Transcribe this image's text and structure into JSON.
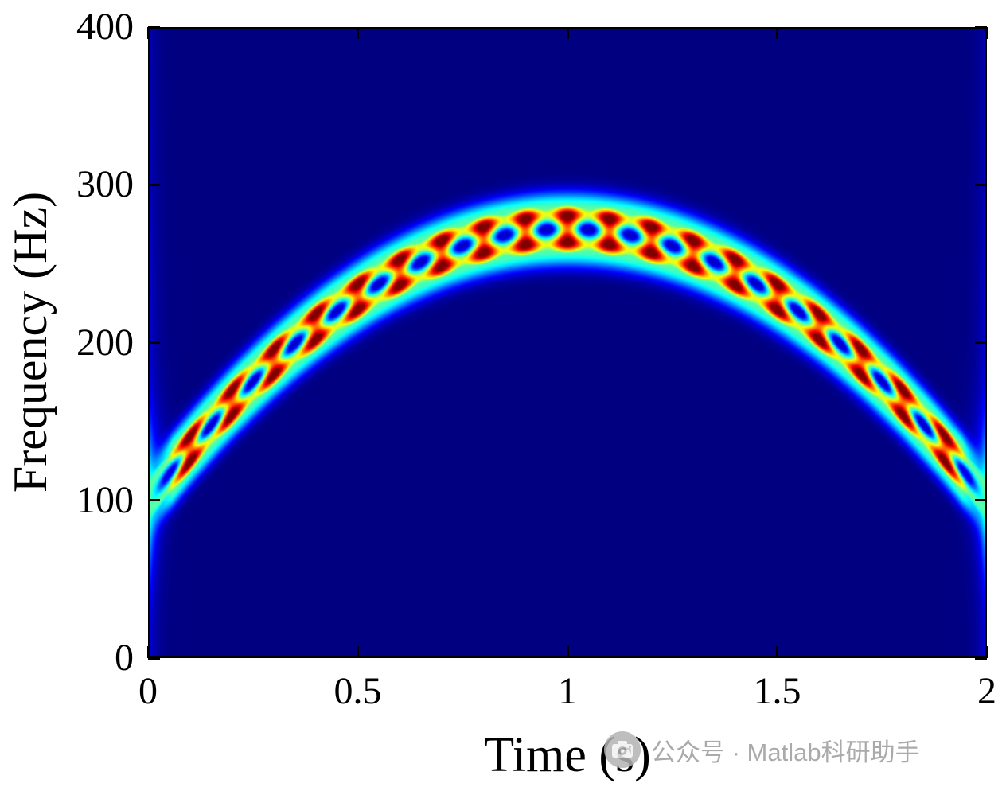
{
  "figure": {
    "background": "#ffffff",
    "frame_color": "#000000"
  },
  "chart_data": {
    "type": "heatmap",
    "subtype": "spectrogram",
    "title": "",
    "xlabel": "Time (s)",
    "ylabel": "Frequency (Hz)",
    "xlim": [
      0,
      2
    ],
    "ylim": [
      0,
      400
    ],
    "xticks": {
      "values": [
        0,
        0.5,
        1,
        1.5,
        2
      ],
      "labels": [
        "0",
        "0.5",
        "1",
        "1.5",
        "2"
      ]
    },
    "yticks": {
      "values": [
        0,
        100,
        200,
        300,
        400
      ],
      "labels": [
        "0",
        "100",
        "200",
        "300",
        "400"
      ]
    },
    "grid": false,
    "legend": null,
    "colormap": "jet",
    "background_color_low_value": "#000090",
    "signal": {
      "description": "Parabolic chirp ridge f(t) = f_peak - curvature*(t - t_center)^2 made of two close components, producing beaded red blobs with dark interference nulls between two parallel sub-ridges; faint cyan edge smears at t=0 and t=2.",
      "t_center": 1.0,
      "f_peak_hz": 272,
      "f_edge_hz": 100,
      "curvature_hz_per_s2": 172,
      "component_separation_hz": 18,
      "ridge_sigma_hz": 7,
      "beat_period_s": 0.1
    }
  },
  "watermark": {
    "text": "公众号 · Matlab科研助手",
    "icon": "camera-badge-icon",
    "color": "#9c9c9c"
  }
}
